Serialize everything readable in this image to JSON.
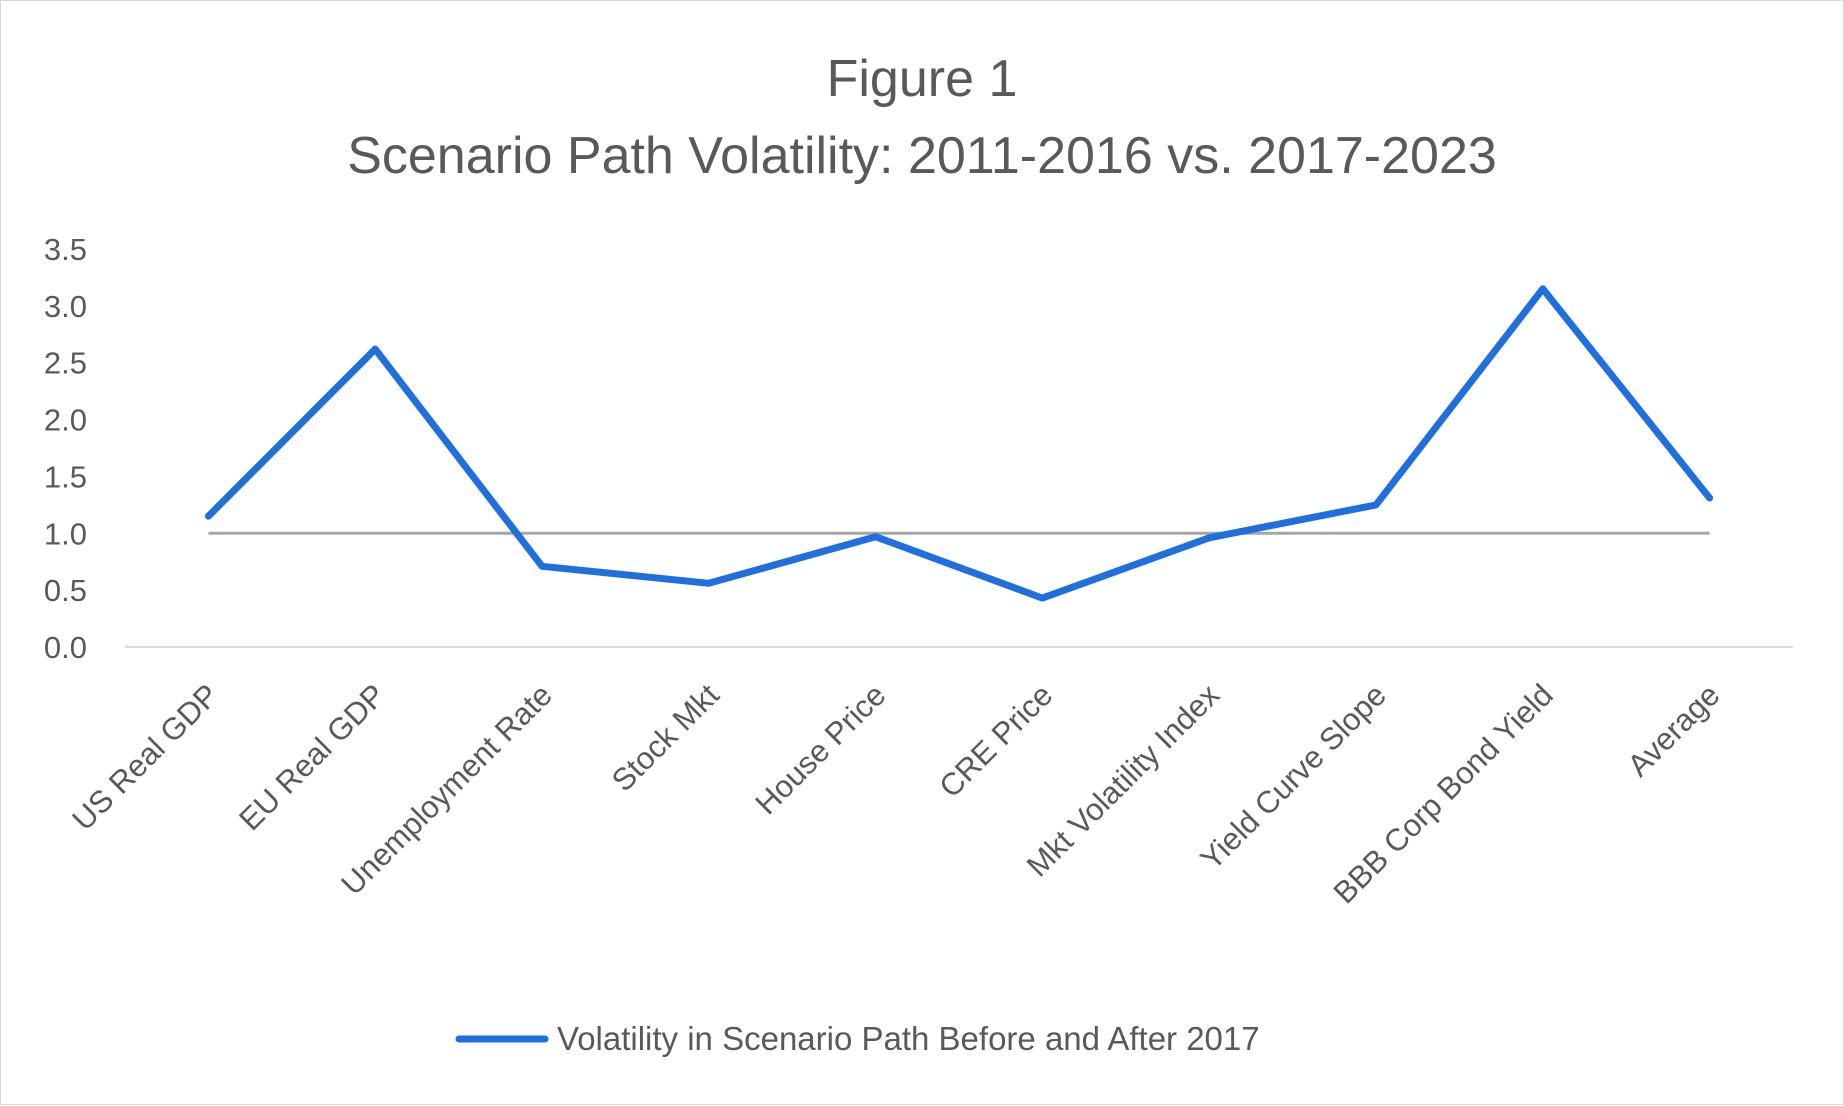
{
  "chart_data": {
    "type": "line",
    "title_lines": [
      "Figure 1",
      "Scenario Path Volatility: 2011-2016 vs. 2017-2023"
    ],
    "categories": [
      "US Real GDP",
      "EU Real GDP",
      "Unemployment Rate",
      "Stock Mkt",
      "House Price",
      "CRE Price",
      "Mkt Volatility Index",
      "Yield Curve Slope",
      "BBB Corp Bond Yield",
      "Average"
    ],
    "series": [
      {
        "name": "Volatility in Scenario Path Before and After 2017",
        "color": "#1f6fde",
        "values": [
          1.15,
          2.62,
          0.71,
          0.56,
          0.97,
          0.43,
          0.96,
          1.25,
          3.15,
          1.31
        ]
      }
    ],
    "reference_line": {
      "value": 1.0,
      "color": "#a6a6a6"
    },
    "yticks": [
      "0.0",
      "0.5",
      "1.0",
      "1.5",
      "2.0",
      "2.5",
      "3.0",
      "3.5"
    ],
    "ylim": [
      0,
      3.5
    ],
    "xlabel": "",
    "ylabel": "",
    "grid": false,
    "legend_position": "bottom-center",
    "axis_color": "#d9d9d9"
  }
}
